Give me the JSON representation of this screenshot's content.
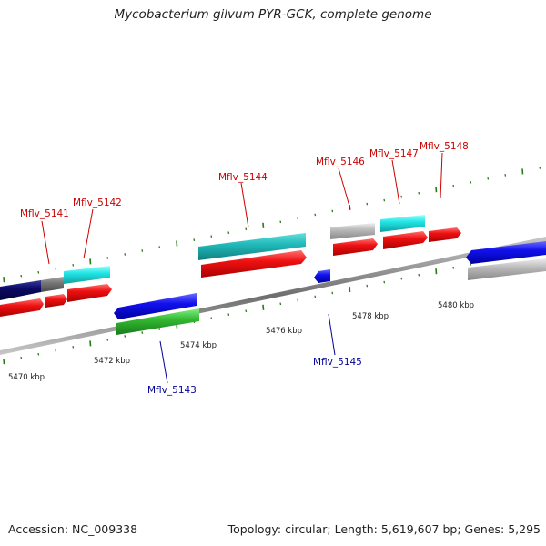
{
  "title": "Mycobacterium gilvum PYR-GCK, complete genome",
  "footer": {
    "accession": "Accession: NC_009338",
    "summary": "Topology: circular; Length: 5,619,607 bp; Genes: 5,295"
  },
  "colors": {
    "forward_label": "#cc0000",
    "reverse_label": "#000099",
    "tick": "#2a7a1a",
    "backbone": "#8a8a8a"
  },
  "scale_labels": [
    "5470 kbp",
    "5472 kbp",
    "5474 kbp",
    "5476 kbp",
    "5478 kbp",
    "5480 kbp"
  ],
  "gene_labels": [
    {
      "name": "Mflv_5141",
      "strand": "forward"
    },
    {
      "name": "Mflv_5142",
      "strand": "forward"
    },
    {
      "name": "Mflv_5143",
      "strand": "reverse"
    },
    {
      "name": "Mflv_5144",
      "strand": "forward"
    },
    {
      "name": "Mflv_5145",
      "strand": "reverse"
    },
    {
      "name": "Mflv_5146",
      "strand": "forward"
    },
    {
      "name": "Mflv_5147",
      "strand": "forward"
    },
    {
      "name": "Mflv_5148",
      "strand": "forward"
    }
  ],
  "feature_colors": {
    "red": "#ee1111",
    "cyan": "#22dddd",
    "teal": "#22bbbb",
    "blue": "#1111ee",
    "green": "#33bb33",
    "navy": "#0a0a66",
    "grey": "#777777",
    "lightgrey": "#bbbbbb"
  }
}
